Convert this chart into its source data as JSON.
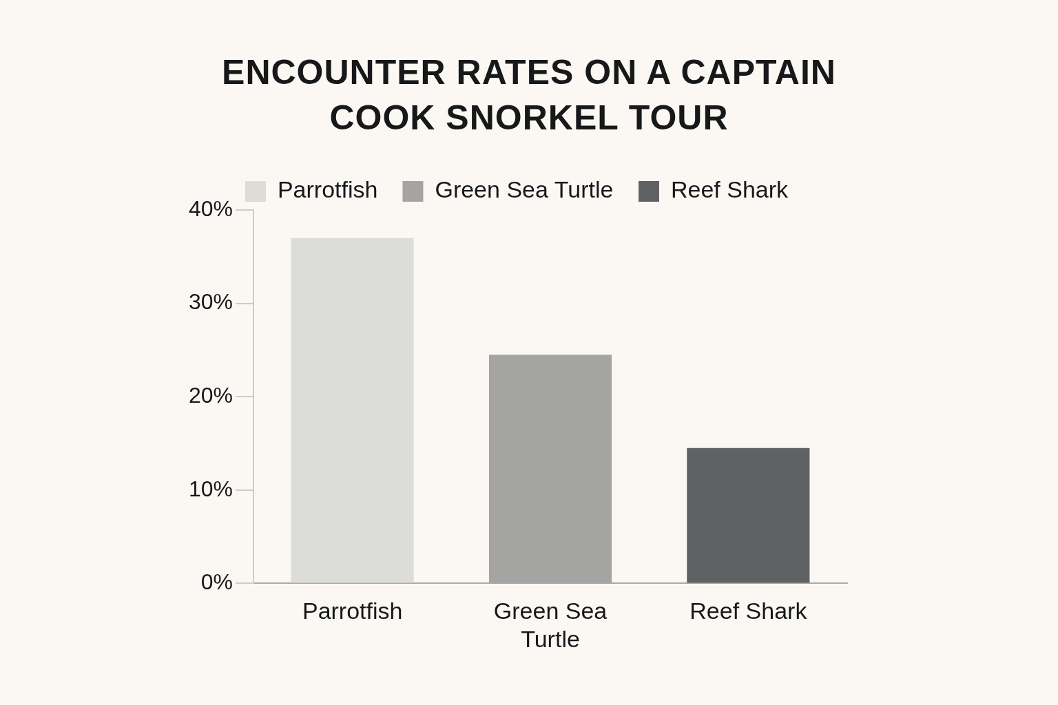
{
  "chart_data": {
    "type": "bar",
    "title": "ENCOUNTER RATES ON A CAPTAIN COOK SNORKEL TOUR",
    "categories": [
      "Parrotfish",
      "Green Sea Turtle",
      "Reef Shark"
    ],
    "series": [
      {
        "name": "Parrotfish",
        "color": "#dcdcd8",
        "values": [
          37,
          null,
          null
        ]
      },
      {
        "name": "Green Sea Turtle",
        "color": "#a4a4a2",
        "values": [
          null,
          24.5,
          null
        ]
      },
      {
        "name": "Reef Shark",
        "color": "#5f6163",
        "values": [
          null,
          null,
          14.5
        ]
      }
    ],
    "ylim": [
      0,
      40
    ],
    "yticks": [
      {
        "value": 0,
        "label": "0%"
      },
      {
        "value": 10,
        "label": "10%"
      },
      {
        "value": 20,
        "label": "20%"
      },
      {
        "value": 30,
        "label": "30%"
      },
      {
        "value": 40,
        "label": "40%"
      }
    ],
    "legend": "top",
    "grid": false
  }
}
